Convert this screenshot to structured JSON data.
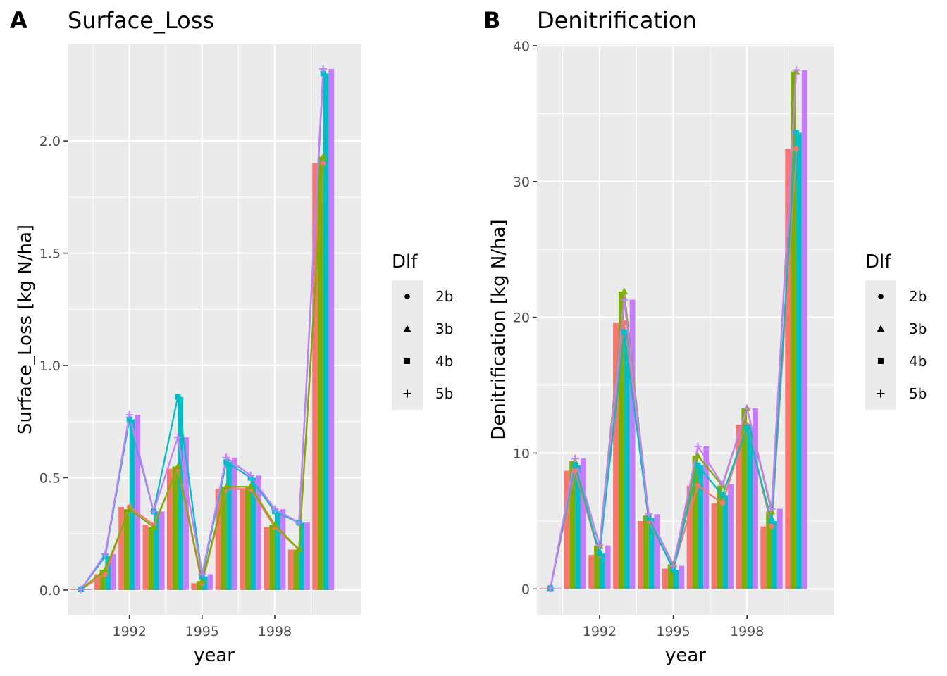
{
  "legend": {
    "title": "Dlf",
    "items": [
      {
        "label": "2b",
        "shape": "circle"
      },
      {
        "label": "3b",
        "shape": "triangle"
      },
      {
        "label": "4b",
        "shape": "square"
      },
      {
        "label": "5b",
        "shape": "plus"
      }
    ]
  },
  "colors": {
    "2b": "#f8766d",
    "3b": "#7cae00",
    "4b": "#00bfc4",
    "5b": "#c77cff",
    "panel_bg": "#ebebeb",
    "grid": "#ffffff"
  },
  "chart_data": [
    {
      "letter": "A",
      "type": "bar+line",
      "title": "Surface_Loss",
      "xlabel": "year",
      "ylabel": "Surface_Loss [kg N/ha]",
      "xlim": [
        1989.45,
        2001.55
      ],
      "ylim": [
        -0.11,
        2.43
      ],
      "xticks": [
        1992,
        1995,
        1998
      ],
      "yticks": [
        0.0,
        0.5,
        1.0,
        1.5,
        2.0
      ],
      "ytick_labels": [
        "0.0",
        "0.5",
        "1.0",
        "1.5",
        "2.0"
      ],
      "x": [
        1990,
        1991,
        1992,
        1993,
        1994,
        1995,
        1996,
        1997,
        1998,
        1999,
        2000
      ],
      "series": [
        {
          "name": "2b",
          "values": [
            0.003,
            0.07,
            0.37,
            0.29,
            0.54,
            0.03,
            0.45,
            0.45,
            0.28,
            0.18,
            1.9
          ]
        },
        {
          "name": "3b",
          "values": [
            0.003,
            0.09,
            0.36,
            0.28,
            0.55,
            0.04,
            0.46,
            0.46,
            0.29,
            0.18,
            1.93
          ]
        },
        {
          "name": "4b",
          "values": [
            0.003,
            0.15,
            0.76,
            0.35,
            0.86,
            0.06,
            0.57,
            0.5,
            0.35,
            0.3,
            2.3
          ]
        },
        {
          "name": "5b",
          "values": [
            0.003,
            0.16,
            0.78,
            0.35,
            0.68,
            0.07,
            0.59,
            0.51,
            0.36,
            0.3,
            2.32
          ]
        }
      ]
    },
    {
      "letter": "B",
      "type": "bar+line",
      "title": "Denitrification",
      "xlabel": "year",
      "ylabel": "Denitrification [kg N/ha]",
      "xlim": [
        1989.45,
        2001.55
      ],
      "ylim": [
        -1.9,
        40.1
      ],
      "xticks": [
        1992,
        1995,
        1998
      ],
      "yticks": [
        0,
        10,
        20,
        30,
        40
      ],
      "ytick_labels": [
        "0",
        "10",
        "20",
        "30",
        "40"
      ],
      "x": [
        1990,
        1991,
        1992,
        1993,
        1994,
        1995,
        1996,
        1997,
        1998,
        1999,
        2000
      ],
      "series": [
        {
          "name": "2b",
          "values": [
            0.05,
            8.7,
            2.5,
            19.6,
            5.0,
            1.5,
            7.6,
            6.3,
            12.1,
            4.6,
            32.4
          ]
        },
        {
          "name": "3b",
          "values": [
            0.05,
            9.4,
            3.2,
            21.9,
            5.4,
            1.8,
            9.8,
            7.6,
            13.3,
            5.7,
            38.1
          ]
        },
        {
          "name": "4b",
          "values": [
            0.05,
            9.1,
            2.6,
            18.9,
            5.2,
            1.4,
            9.1,
            6.9,
            11.9,
            5.0,
            33.6
          ]
        },
        {
          "name": "5b",
          "values": [
            0.05,
            9.6,
            3.2,
            21.3,
            5.5,
            1.7,
            10.5,
            7.7,
            13.3,
            5.9,
            38.2
          ]
        }
      ]
    }
  ]
}
